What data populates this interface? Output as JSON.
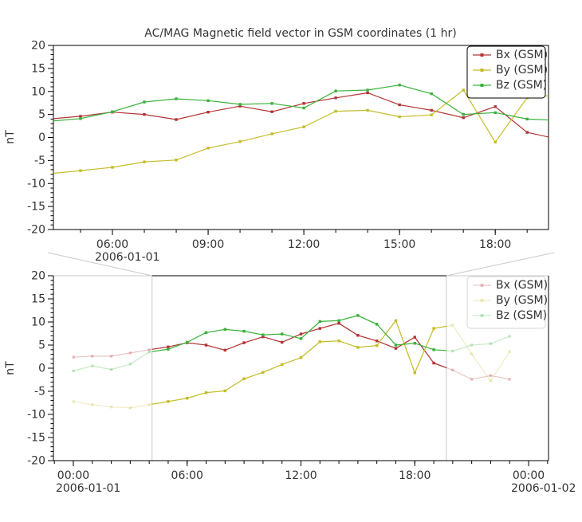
{
  "figure": {
    "background": "#ffffff"
  },
  "colors": {
    "bx": "#b23434",
    "by": "#c5bc2a",
    "bz": "#3ab23a",
    "axis": "#000000",
    "text": "#333333",
    "context_gray": "#c9c9c9",
    "faded_legend_text": "#c4c4c4",
    "fade_alpha": 0.28
  },
  "chart_data": {
    "type": "line",
    "title": "AC/MAG  Magnetic field vector in GSM coordinates (1 hr)",
    "ylabel": "nT",
    "x_unit": "hour of day, 1 hr cadence",
    "x": [
      0,
      1,
      2,
      3,
      4,
      5,
      6,
      7,
      8,
      9,
      10,
      11,
      12,
      13,
      14,
      15,
      16,
      17,
      18,
      19,
      20,
      21,
      22,
      23
    ],
    "series": [
      {
        "name": "Bx (GSM)",
        "color": "bx",
        "values": [
          2.4,
          2.6,
          2.6,
          3.3,
          4.0,
          4.6,
          5.5,
          5.0,
          3.9,
          5.5,
          6.8,
          5.6,
          7.4,
          8.6,
          9.7,
          7.1,
          5.9,
          4.3,
          6.7,
          1.1,
          -0.4,
          -2.4,
          -1.6,
          -2.4
        ]
      },
      {
        "name": "By (GSM)",
        "color": "by",
        "values": [
          -7.2,
          -7.9,
          -8.4,
          -8.6,
          -7.9,
          -7.2,
          -6.5,
          -5.3,
          -4.9,
          -2.3,
          -0.9,
          0.8,
          2.3,
          5.7,
          5.9,
          4.5,
          4.9,
          10.3,
          -1.0,
          8.6,
          9.3,
          3.1,
          -2.8,
          3.6
        ]
      },
      {
        "name": "Bz (GSM)",
        "color": "bz",
        "values": [
          -0.6,
          0.5,
          -0.3,
          0.9,
          3.5,
          4.1,
          5.6,
          7.7,
          8.4,
          8.0,
          7.2,
          7.4,
          6.4,
          10.1,
          10.3,
          11.4,
          9.5,
          5.0,
          5.4,
          4.0,
          3.7,
          5.0,
          5.3,
          6.9
        ]
      }
    ],
    "ylim": [
      -20,
      20
    ],
    "y_major_step": 5,
    "y_minor_step": 1,
    "y_major_labels": [
      "20",
      "15",
      "10",
      "5",
      "0",
      "-5",
      "-10",
      "-15",
      "-20"
    ],
    "legend_labels": [
      "Bx (GSM)",
      "By (GSM)",
      "Bz (GSM)"
    ],
    "panels": [
      {
        "name": "detail",
        "xlim": [
          4.15,
          19.67
        ],
        "x_major_ticks": [
          {
            "hour": 6,
            "label": "06:00",
            "date": "2006-01-01"
          },
          {
            "hour": 9,
            "label": "09:00"
          },
          {
            "hour": 12,
            "label": "12:00"
          },
          {
            "hour": 15,
            "label": "15:00"
          },
          {
            "hour": 18,
            "label": "18:00"
          }
        ],
        "legend_style": "normal"
      },
      {
        "name": "context",
        "xlim": [
          -1.05,
          25.05
        ],
        "x_major_ticks": [
          {
            "hour": 0,
            "label": "00:00",
            "date": "2006-01-01"
          },
          {
            "hour": 6,
            "label": "06:00"
          },
          {
            "hour": 12,
            "label": "12:00"
          },
          {
            "hour": 18,
            "label": "18:00"
          },
          {
            "hour": 24,
            "label": "00:00",
            "date": "2006-01-02"
          }
        ],
        "legend_style": "faded",
        "highlight": [
          4.15,
          19.67
        ]
      }
    ]
  }
}
